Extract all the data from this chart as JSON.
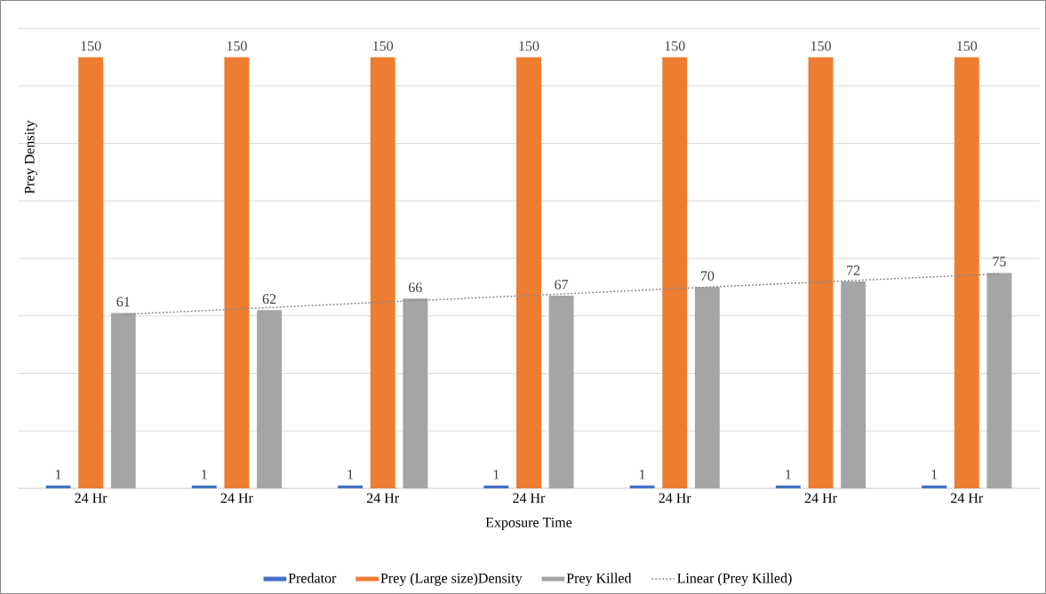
{
  "chart_data": {
    "type": "bar",
    "xlabel": "Exposure Time",
    "ylabel": "Prey Density",
    "categories": [
      "24 Hr",
      "24 Hr",
      "24 Hr",
      "24 Hr",
      "24 Hr",
      "24 Hr",
      "24 Hr"
    ],
    "series": [
      {
        "name": "Predator",
        "color": "#4472c4",
        "values": [
          1,
          1,
          1,
          1,
          1,
          1,
          1
        ],
        "value_labels": [
          "1",
          "1",
          "1",
          "1",
          "1",
          "1",
          "1"
        ]
      },
      {
        "name": "Prey (Large size)Density",
        "color": "#ed7d31",
        "values": [
          150,
          150,
          150,
          150,
          150,
          150,
          150
        ],
        "value_labels": [
          "150",
          "150",
          "150",
          "150",
          "150",
          "150",
          "150"
        ]
      },
      {
        "name": "Prey Killed",
        "color": "#a5a5a5",
        "values": [
          61,
          62,
          66,
          67,
          70,
          72,
          75
        ],
        "value_labels": [
          "61",
          "62",
          "66",
          "67",
          "70",
          "72",
          "75"
        ]
      },
      {
        "name": "Linear (Prey Killed)",
        "type": "line",
        "line_style": "dotted",
        "color": "#8c8c8c",
        "values": [
          60.5,
          62.9,
          65.3,
          67.6,
          70.0,
          72.3,
          74.6
        ]
      }
    ],
    "ylim": [
      0,
      160
    ],
    "yticks": [
      {
        "value": 0,
        "label": null
      },
      {
        "value": 20,
        "label": null
      },
      {
        "value": 40,
        "label": null
      },
      {
        "value": 60,
        "label": null
      },
      {
        "value": 80,
        "label": null
      },
      {
        "value": 100,
        "label": null
      },
      {
        "value": 120,
        "label": null
      },
      {
        "value": 140,
        "label": null
      },
      {
        "value": 160,
        "label": null
      }
    ],
    "tick_labels": "x",
    "grid": "y",
    "legend": "bottom"
  }
}
